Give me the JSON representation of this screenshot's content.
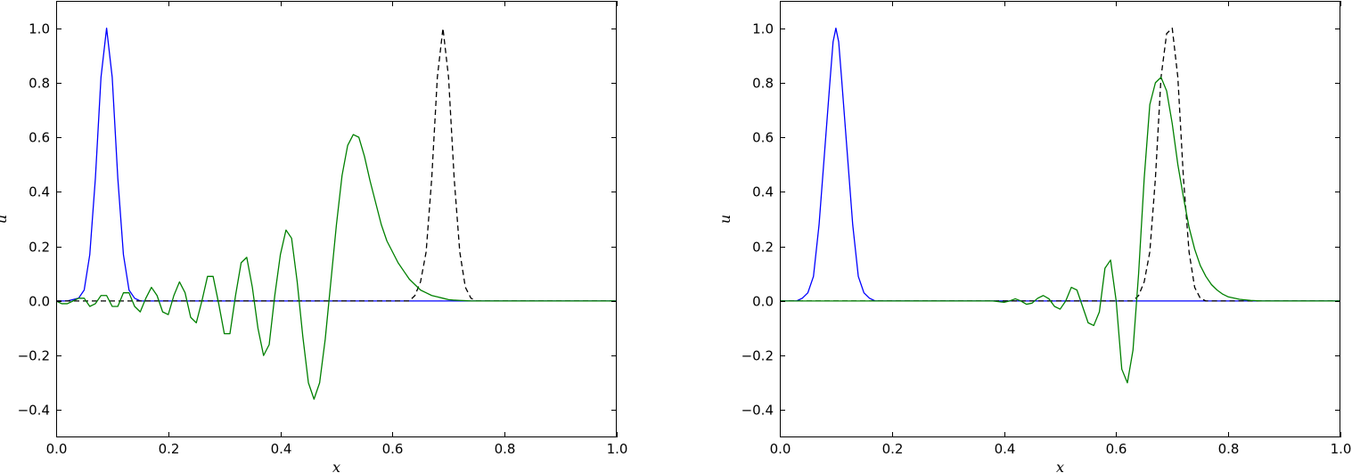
{
  "chart_data": [
    {
      "type": "line",
      "xlabel": "x",
      "ylabel": "u",
      "xlim": [
        0.0,
        1.0
      ],
      "ylim": [
        -0.5,
        1.1
      ],
      "xticks": [
        "0.0",
        "0.2",
        "0.4",
        "0.6",
        "0.8",
        "1.0"
      ],
      "yticks": [
        "−0.4",
        "−0.2",
        "0.0",
        "0.2",
        "0.4",
        "0.6",
        "0.8",
        "1.0"
      ],
      "grid": false,
      "series": [
        {
          "color": "#0000ff",
          "style": "solid",
          "x": [
            0.0,
            0.02,
            0.04,
            0.05,
            0.06,
            0.07,
            0.08,
            0.09,
            0.1,
            0.11,
            0.12,
            0.13,
            0.14,
            0.15,
            0.16,
            0.18,
            0.2,
            0.3,
            0.4,
            0.5,
            0.6,
            0.7,
            0.8,
            0.9,
            1.0
          ],
          "y": [
            0.0,
            0.0,
            0.01,
            0.04,
            0.17,
            0.45,
            0.82,
            1.0,
            0.82,
            0.45,
            0.17,
            0.04,
            0.01,
            0.0,
            0.0,
            0.0,
            0.0,
            0.0,
            0.0,
            0.0,
            0.0,
            0.0,
            0.0,
            0.0,
            0.0
          ]
        },
        {
          "color": "#000000",
          "style": "dashed",
          "x": [
            0.0,
            0.1,
            0.2,
            0.3,
            0.4,
            0.5,
            0.6,
            0.63,
            0.64,
            0.65,
            0.66,
            0.67,
            0.68,
            0.69,
            0.7,
            0.71,
            0.72,
            0.73,
            0.74,
            0.75,
            0.76,
            0.78,
            0.8,
            0.9,
            1.0
          ],
          "y": [
            0.0,
            0.0,
            0.0,
            0.0,
            0.0,
            0.0,
            0.0,
            0.0,
            0.02,
            0.07,
            0.18,
            0.45,
            0.82,
            1.0,
            0.82,
            0.45,
            0.18,
            0.05,
            0.01,
            0.0,
            0.0,
            0.0,
            0.0,
            0.0,
            0.0
          ]
        },
        {
          "color": "#008000",
          "style": "solid",
          "x": [
            0.0,
            0.01,
            0.02,
            0.03,
            0.04,
            0.05,
            0.06,
            0.07,
            0.08,
            0.09,
            0.1,
            0.11,
            0.12,
            0.13,
            0.14,
            0.15,
            0.16,
            0.17,
            0.18,
            0.19,
            0.2,
            0.21,
            0.22,
            0.23,
            0.24,
            0.25,
            0.26,
            0.27,
            0.28,
            0.29,
            0.3,
            0.31,
            0.32,
            0.33,
            0.34,
            0.35,
            0.36,
            0.37,
            0.38,
            0.39,
            0.4,
            0.41,
            0.42,
            0.43,
            0.44,
            0.45,
            0.46,
            0.47,
            0.48,
            0.49,
            0.5,
            0.51,
            0.52,
            0.53,
            0.54,
            0.55,
            0.56,
            0.57,
            0.58,
            0.59,
            0.6,
            0.61,
            0.62,
            0.63,
            0.64,
            0.65,
            0.66,
            0.67,
            0.68,
            0.69,
            0.7,
            0.71,
            0.72,
            0.73,
            0.74,
            0.75,
            0.76,
            0.77,
            0.78,
            0.79,
            0.8,
            0.81,
            0.82,
            0.83,
            0.84,
            0.85,
            0.86,
            0.88,
            0.9,
            0.95,
            1.0
          ],
          "y": [
            0.0,
            -0.01,
            -0.01,
            0.0,
            0.01,
            0.01,
            -0.02,
            -0.01,
            0.02,
            0.02,
            -0.02,
            -0.02,
            0.03,
            0.03,
            -0.02,
            -0.04,
            0.01,
            0.05,
            0.02,
            -0.04,
            -0.05,
            0.02,
            0.07,
            0.03,
            -0.06,
            -0.08,
            0.0,
            0.09,
            0.09,
            -0.01,
            -0.12,
            -0.12,
            0.02,
            0.14,
            0.16,
            0.05,
            -0.1,
            -0.2,
            -0.16,
            0.02,
            0.17,
            0.26,
            0.23,
            0.07,
            -0.13,
            -0.3,
            -0.36,
            -0.3,
            -0.14,
            0.07,
            0.28,
            0.46,
            0.57,
            0.61,
            0.6,
            0.53,
            0.44,
            0.36,
            0.28,
            0.22,
            0.18,
            0.14,
            0.11,
            0.08,
            0.06,
            0.04,
            0.03,
            0.02,
            0.015,
            0.01,
            0.005,
            0.003,
            0.002,
            0.001,
            0.0,
            0.0,
            0.0,
            0.0,
            0.0,
            0.0,
            0.0,
            0.0,
            0.0,
            0.0,
            0.0,
            0.0,
            0.0,
            0.0,
            0.0,
            0.0,
            0.0
          ]
        }
      ]
    },
    {
      "type": "line",
      "xlabel": "x",
      "ylabel": "u",
      "xlim": [
        0.0,
        1.0
      ],
      "ylim": [
        -0.5,
        1.1
      ],
      "xticks": [
        "0.0",
        "0.2",
        "0.4",
        "0.6",
        "0.8",
        "1.0"
      ],
      "yticks": [
        "−0.4",
        "−0.2",
        "0.0",
        "0.2",
        "0.4",
        "0.6",
        "0.8",
        "1.0"
      ],
      "grid": false,
      "series": [
        {
          "color": "#0000ff",
          "style": "solid",
          "x": [
            0.0,
            0.02,
            0.03,
            0.04,
            0.05,
            0.06,
            0.07,
            0.08,
            0.09,
            0.095,
            0.1,
            0.105,
            0.11,
            0.12,
            0.13,
            0.14,
            0.15,
            0.16,
            0.17,
            0.18,
            0.2,
            0.4,
            0.6,
            0.8,
            1.0
          ],
          "y": [
            0.0,
            0.0,
            0.0,
            0.01,
            0.03,
            0.09,
            0.28,
            0.55,
            0.82,
            0.95,
            1.0,
            0.95,
            0.82,
            0.55,
            0.28,
            0.09,
            0.03,
            0.01,
            0.0,
            0.0,
            0.0,
            0.0,
            0.0,
            0.0,
            0.0
          ]
        },
        {
          "color": "#000000",
          "style": "dashed",
          "x": [
            0.0,
            0.2,
            0.4,
            0.6,
            0.63,
            0.64,
            0.65,
            0.66,
            0.67,
            0.68,
            0.69,
            0.7,
            0.71,
            0.72,
            0.73,
            0.74,
            0.75,
            0.76,
            0.78,
            0.8,
            1.0
          ],
          "y": [
            0.0,
            0.0,
            0.0,
            0.0,
            0.0,
            0.02,
            0.07,
            0.18,
            0.45,
            0.82,
            0.98,
            1.0,
            0.82,
            0.45,
            0.18,
            0.05,
            0.01,
            0.0,
            0.0,
            0.0,
            0.0
          ]
        },
        {
          "color": "#008000",
          "style": "solid",
          "x": [
            0.0,
            0.1,
            0.2,
            0.3,
            0.35,
            0.38,
            0.4,
            0.41,
            0.42,
            0.43,
            0.44,
            0.45,
            0.46,
            0.47,
            0.48,
            0.49,
            0.5,
            0.51,
            0.52,
            0.53,
            0.54,
            0.55,
            0.56,
            0.57,
            0.58,
            0.59,
            0.6,
            0.61,
            0.62,
            0.63,
            0.64,
            0.65,
            0.66,
            0.67,
            0.68,
            0.69,
            0.7,
            0.71,
            0.72,
            0.73,
            0.74,
            0.75,
            0.76,
            0.77,
            0.78,
            0.79,
            0.8,
            0.82,
            0.84,
            0.86,
            0.9,
            1.0
          ],
          "y": [
            0.0,
            0.0,
            0.0,
            0.0,
            0.0,
            0.0,
            -0.005,
            0.0,
            0.008,
            0.0,
            -0.012,
            -0.008,
            0.01,
            0.02,
            0.008,
            -0.02,
            -0.03,
            0.0,
            0.05,
            0.04,
            -0.02,
            -0.08,
            -0.09,
            -0.04,
            0.12,
            0.15,
            0.0,
            -0.25,
            -0.3,
            -0.18,
            0.1,
            0.45,
            0.72,
            0.8,
            0.82,
            0.77,
            0.65,
            0.5,
            0.38,
            0.27,
            0.19,
            0.13,
            0.09,
            0.06,
            0.04,
            0.025,
            0.015,
            0.006,
            0.002,
            0.0,
            0.0,
            0.0
          ]
        }
      ]
    }
  ]
}
